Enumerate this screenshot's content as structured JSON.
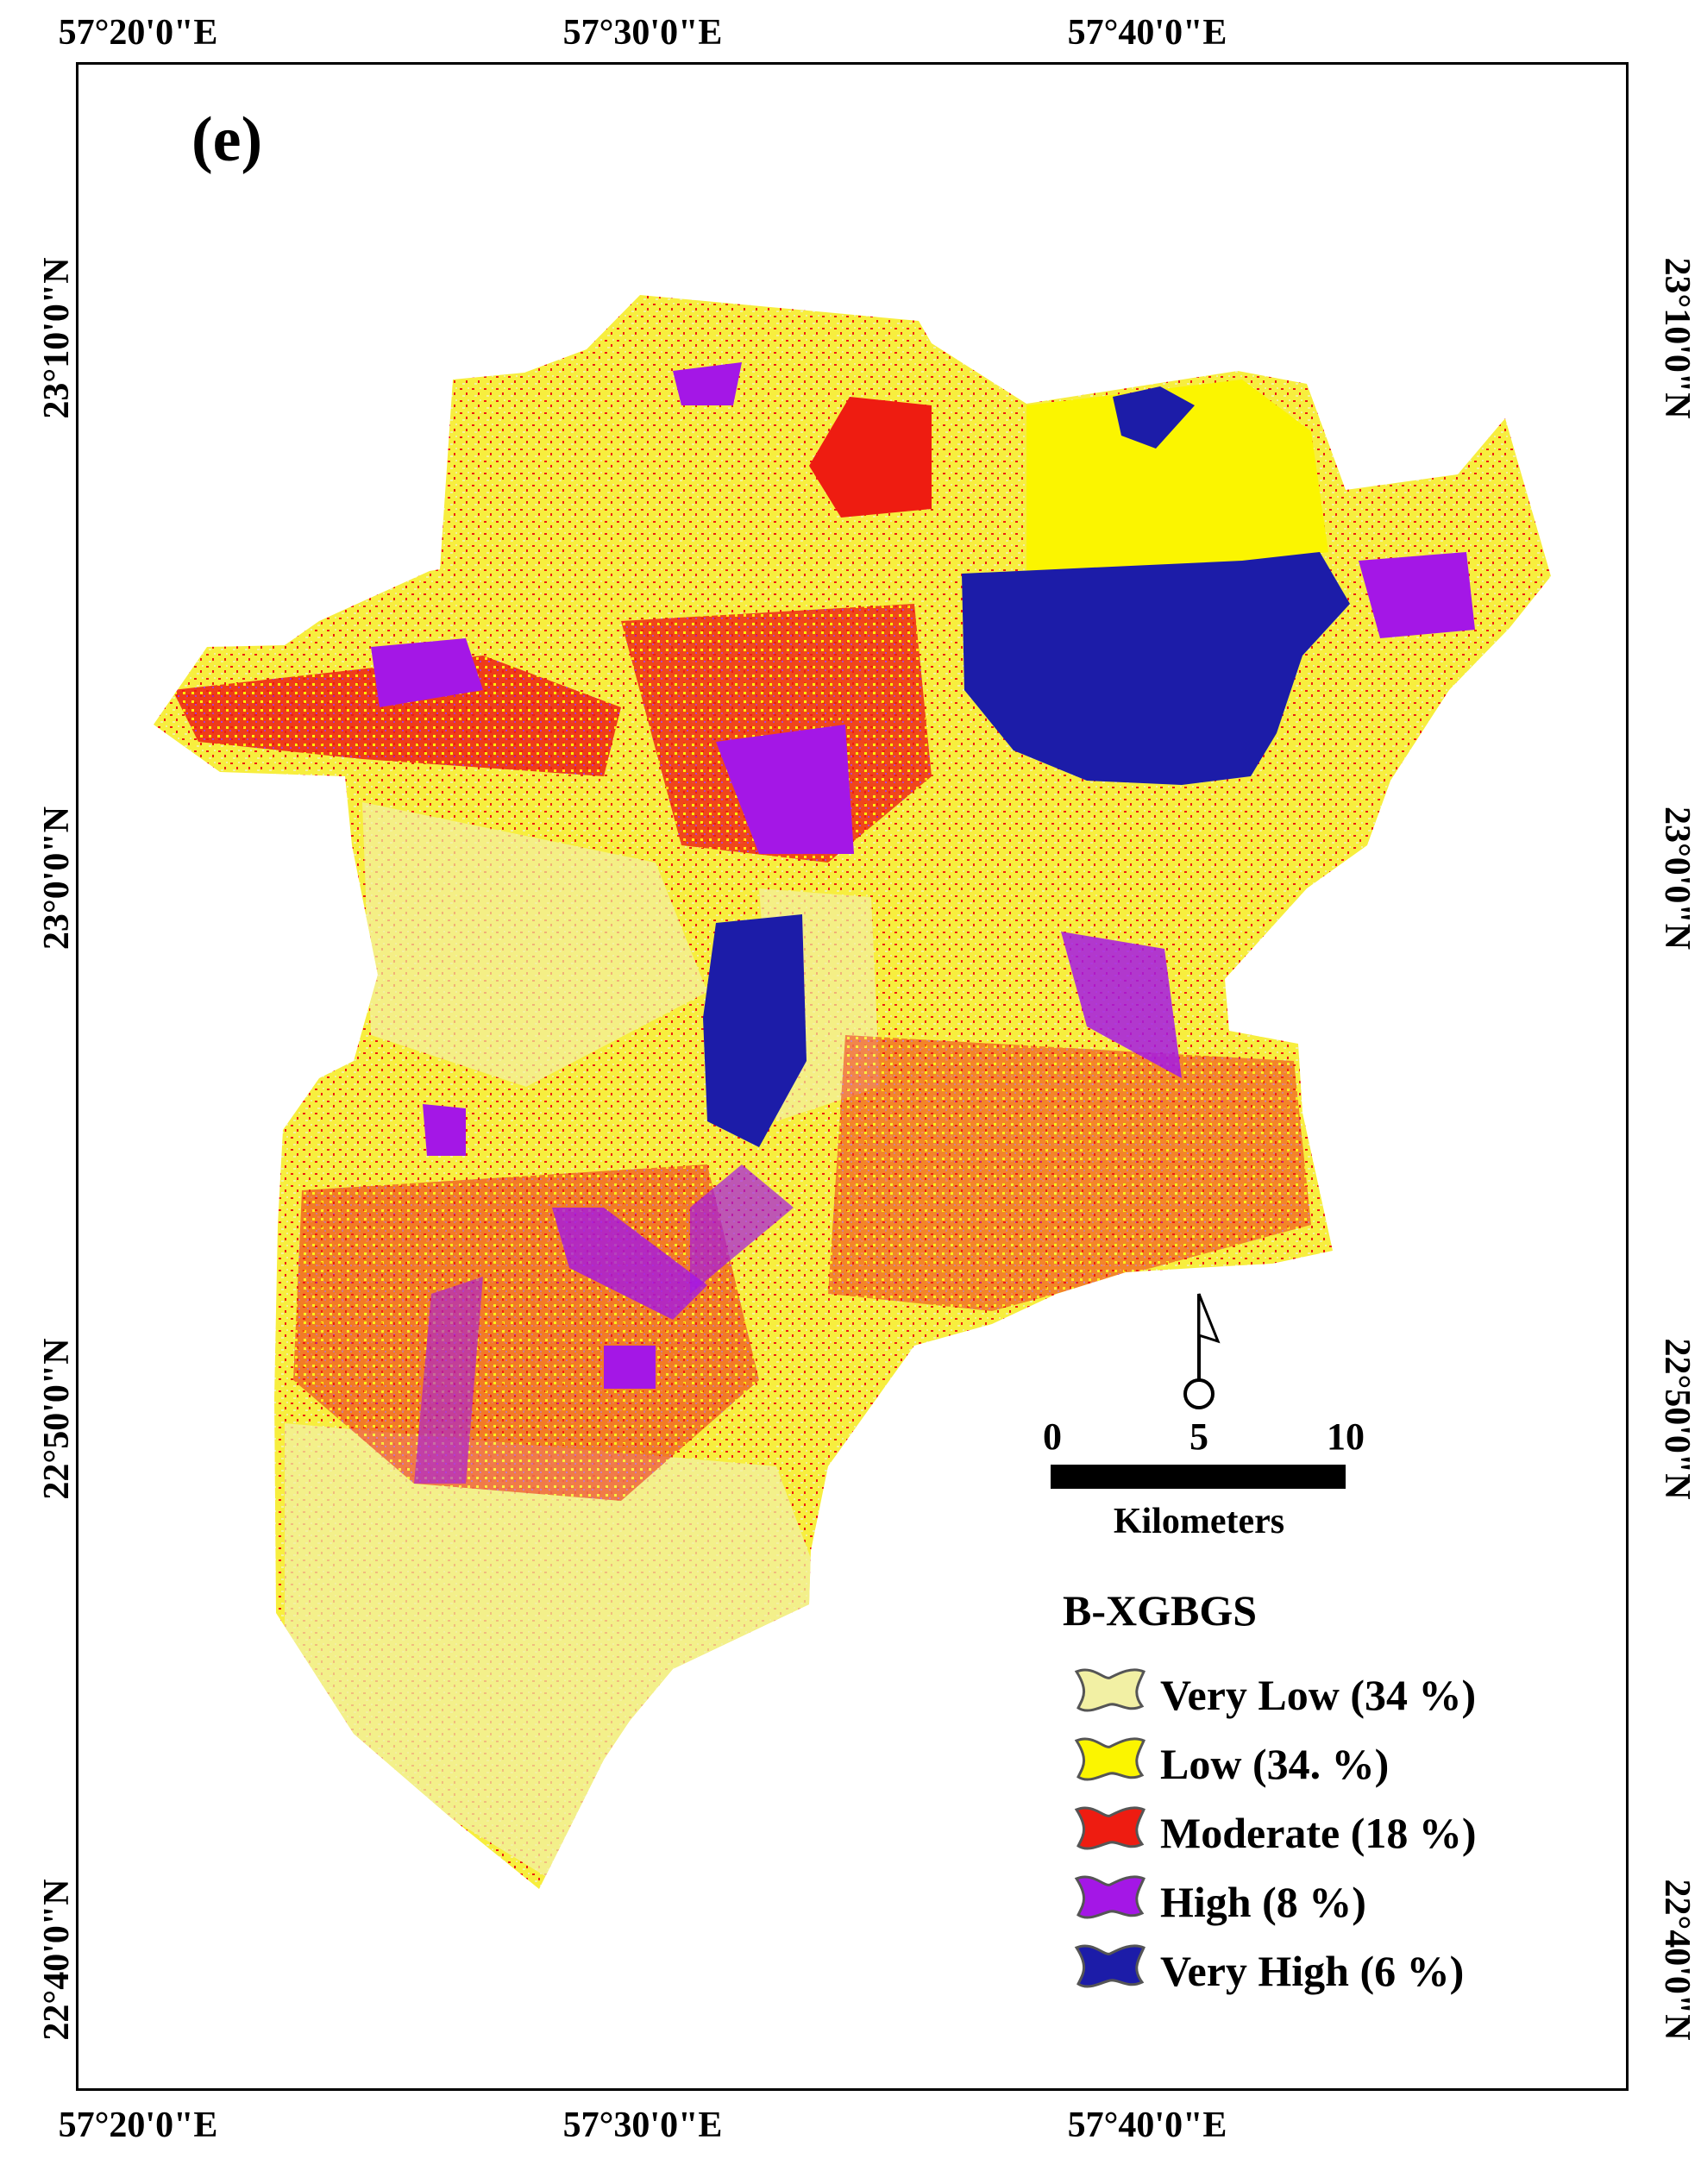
{
  "map": {
    "panel_label": "(e)",
    "axes": {
      "longitude_ticks": [
        "57°20'0\"E",
        "57°30'0\"E",
        "57°40'0\"E"
      ],
      "latitude_ticks": [
        "23°10'0\"N",
        "23°0'0\"N",
        "22°50'0\"N",
        "22°40'0\"N"
      ]
    },
    "scale_bar": {
      "values": [
        "0",
        "5",
        "10"
      ],
      "unit": "Kilometers"
    },
    "legend": {
      "title": "B-XGBGS",
      "items": [
        {
          "label": "Very Low (34 %)",
          "color": "#f2f0a4"
        },
        {
          "label": "Low (34. %)",
          "color": "#fbf500"
        },
        {
          "label": "Moderate  (18 %)",
          "color": "#ee1c11"
        },
        {
          "label": "High (8 %)",
          "color": "#a417e6"
        },
        {
          "label": "Very High (6 %)",
          "color": "#1c1ca8"
        }
      ]
    }
  }
}
